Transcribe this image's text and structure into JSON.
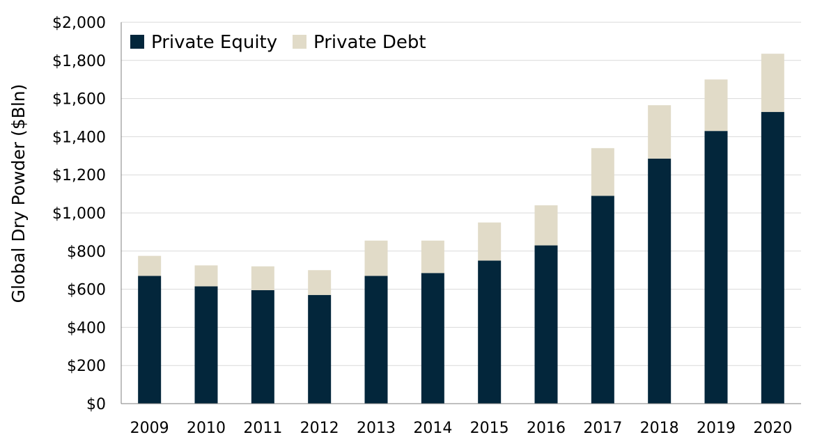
{
  "chart_data": {
    "type": "bar",
    "stacked": true,
    "categories": [
      "2009",
      "2010",
      "2011",
      "2012",
      "2013",
      "2014",
      "2015",
      "2016",
      "2017",
      "2018",
      "2019",
      "2020"
    ],
    "series": [
      {
        "name": "Private Equity",
        "color": "#03263b",
        "values": [
          670,
          615,
          595,
          570,
          670,
          685,
          750,
          830,
          1090,
          1285,
          1430,
          1530
        ]
      },
      {
        "name": "Private Debt",
        "color": "#e1dbc8",
        "values": [
          105,
          110,
          125,
          130,
          185,
          170,
          200,
          210,
          250,
          280,
          270,
          305
        ]
      }
    ],
    "title": "",
    "xlabel": "",
    "ylabel": "Global Dry Powder ($Bln)",
    "ylim": [
      0,
      2000
    ],
    "yticks": [
      0,
      200,
      400,
      600,
      800,
      1000,
      1200,
      1400,
      1600,
      1800,
      2000
    ],
    "ytick_labels": [
      "$0",
      "$200",
      "$400",
      "$600",
      "$800",
      "$1,000",
      "$1,200",
      "$1,400",
      "$1,600",
      "$1,800",
      "$2,000"
    ],
    "grid": true,
    "legend_position": "top-left"
  }
}
